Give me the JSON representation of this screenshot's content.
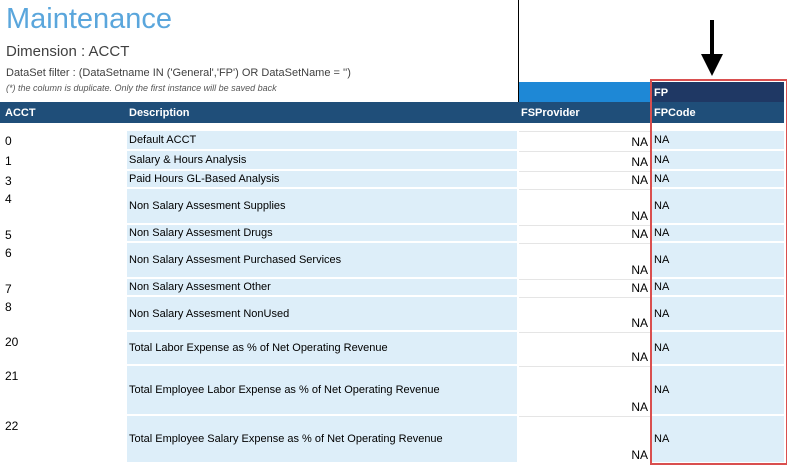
{
  "header": {
    "title": "Maintenance",
    "dimension": "Dimension : ACCT",
    "filter": "DataSet filter : (DataSetname IN ('General','FP') OR DataSetName = '')",
    "note": "(*) the column is duplicate. Only the first instance will be saved back"
  },
  "group_label": "FP",
  "columns": {
    "acct": "ACCT",
    "description": "Description",
    "fsprovider": "FSProvider",
    "fpcode": "FPCode"
  },
  "rows": [
    {
      "acct": "0",
      "description": "Default ACCT",
      "fsprovider": "NA",
      "fpcode": "NA"
    },
    {
      "acct": "1",
      "description": "Salary & Hours Analysis",
      "fsprovider": "NA",
      "fpcode": "NA"
    },
    {
      "acct": "3",
      "description": "Paid Hours GL-Based Analysis",
      "fsprovider": "NA",
      "fpcode": "NA"
    },
    {
      "acct": "4",
      "description": "Non Salary Assesment Supplies",
      "fsprovider": "NA",
      "fpcode": "NA"
    },
    {
      "acct": "5",
      "description": "Non Salary Assesment Drugs",
      "fsprovider": "NA",
      "fpcode": "NA"
    },
    {
      "acct": "6",
      "description": "Non Salary Assesment Purchased Services",
      "fsprovider": "NA",
      "fpcode": "NA"
    },
    {
      "acct": "7",
      "description": "Non Salary Assesment Other",
      "fsprovider": "NA",
      "fpcode": "NA"
    },
    {
      "acct": "8",
      "description": "Non Salary Assesment NonUsed",
      "fsprovider": "NA",
      "fpcode": "NA"
    },
    {
      "acct": "20",
      "description": "Total Labor Expense as % of Net Operating Revenue",
      "fsprovider": "NA",
      "fpcode": "NA"
    },
    {
      "acct": "21",
      "description": "Total Employee Labor Expense as % of Net Operating Revenue",
      "fsprovider": "NA",
      "fpcode": "NA"
    },
    {
      "acct": "22",
      "description": "Total Employee Salary Expense as % of Net Operating Revenue",
      "fsprovider": "NA",
      "fpcode": "NA"
    }
  ],
  "annotation": {
    "arrow_icon": "arrow-down-icon",
    "highlight_color": "#d94f4f"
  }
}
